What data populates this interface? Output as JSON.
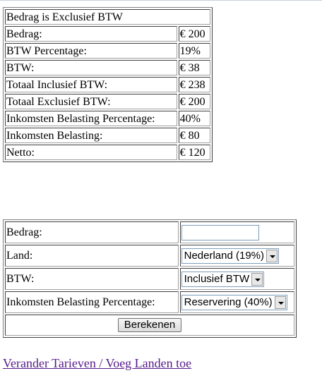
{
  "result": {
    "title": "Bedrag is Exclusief BTW",
    "rows": [
      {
        "label": "Bedrag:",
        "value": "€ 200"
      },
      {
        "label": "BTW Percentage:",
        "value": "19%"
      },
      {
        "label": "BTW:",
        "value": "€ 38"
      },
      {
        "label": "Totaal Inclusief BTW:",
        "value": "€ 238"
      },
      {
        "label": "Totaal Exclusief BTW:",
        "value": "€ 200"
      },
      {
        "label": "Inkomsten Belasting Percentage:",
        "value": "40%"
      },
      {
        "label": "Inkomsten Belasting:",
        "value": "€ 80"
      },
      {
        "label": "Netto:",
        "value": "€ 120"
      }
    ]
  },
  "form": {
    "bedrag_label": "Bedrag:",
    "bedrag_value": "",
    "land_label": "Land:",
    "land_selected": "Nederland (19%)",
    "btw_label": "BTW:",
    "btw_selected": "Inclusief BTW",
    "ib_label": "Inkomsten Belasting Percentage:",
    "ib_selected": "Reservering (40%)",
    "submit_label": "Berekenen"
  },
  "link": {
    "text": "Verander Tarieven / Voeg Landen toe"
  }
}
